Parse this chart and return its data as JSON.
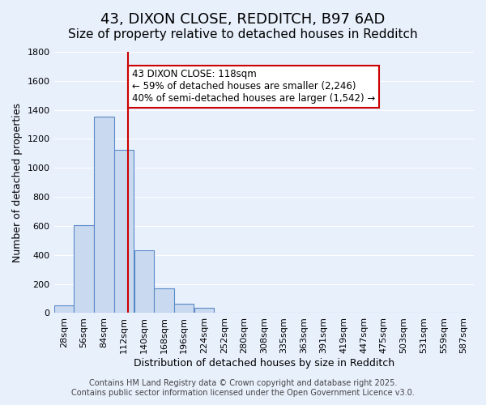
{
  "title": "43, DIXON CLOSE, REDDITCH, B97 6AD",
  "subtitle": "Size of property relative to detached houses in Redditch",
  "xlabel": "Distribution of detached houses by size in Redditch",
  "ylabel": "Number of detached properties",
  "bin_labels": [
    "28sqm",
    "56sqm",
    "84sqm",
    "112sqm",
    "140sqm",
    "168sqm",
    "196sqm",
    "224sqm",
    "252sqm",
    "280sqm",
    "308sqm",
    "335sqm",
    "363sqm",
    "391sqm",
    "419sqm",
    "447sqm",
    "475sqm",
    "503sqm",
    "531sqm",
    "559sqm",
    "587sqm"
  ],
  "bin_edges": [
    14,
    42,
    70,
    98,
    126,
    154,
    182,
    210,
    238,
    266,
    294,
    321.5,
    349,
    377,
    405,
    433,
    461,
    489,
    517,
    545,
    573,
    601
  ],
  "bar_heights": [
    55,
    605,
    1355,
    1125,
    430,
    170,
    65,
    35,
    0,
    0,
    0,
    0,
    0,
    0,
    0,
    0,
    0,
    0,
    0,
    0,
    0
  ],
  "bar_color": "#c9d9f0",
  "bar_edge_color": "#5a8ac6",
  "background_color": "#e8f0fc",
  "grid_color": "#ffffff",
  "vline_x": 118,
  "vline_color": "#cc0000",
  "annotation_box_text": "43 DIXON CLOSE: 118sqm\n← 59% of detached houses are smaller (2,246)\n40% of semi-detached houses are larger (1,542) →",
  "annotation_box_color": "#ffffff",
  "annotation_box_edge_color": "#cc0000",
  "ylim": [
    0,
    1800
  ],
  "yticks": [
    0,
    200,
    400,
    600,
    800,
    1000,
    1200,
    1400,
    1600,
    1800
  ],
  "footer_line1": "Contains HM Land Registry data © Crown copyright and database right 2025.",
  "footer_line2": "Contains public sector information licensed under the Open Government Licence v3.0.",
  "title_fontsize": 13,
  "subtitle_fontsize": 11,
  "axis_label_fontsize": 9,
  "tick_fontsize": 8,
  "annotation_fontsize": 8.5,
  "footer_fontsize": 7
}
